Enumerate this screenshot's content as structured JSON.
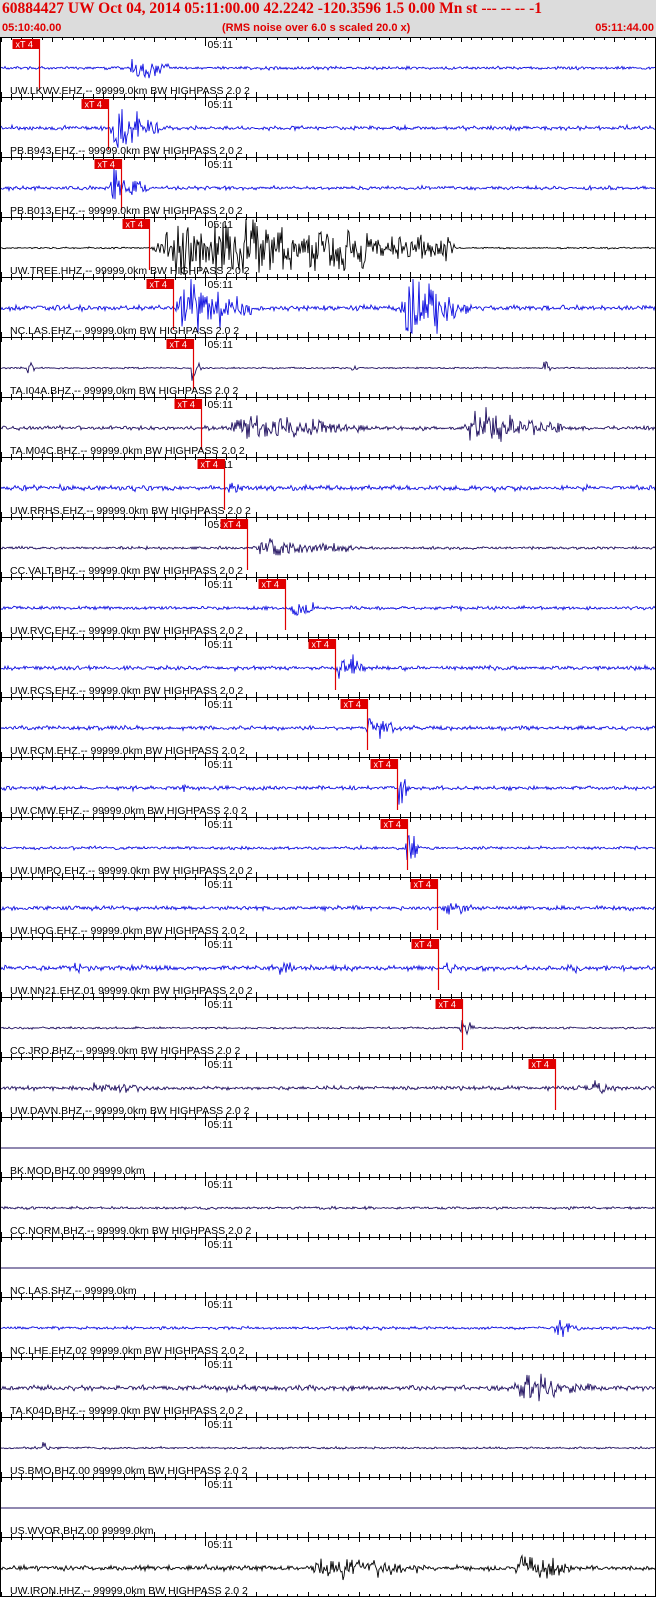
{
  "header": {
    "title": "60884427 UW Oct 04, 2014 05:11:00.00   42.2242 -120.3596  1.5 0.00 Mn st --- -- --  -1",
    "start_time": "05:10:40.00",
    "note": "(RMS noise over 6.0 s scaled 20.0 x)",
    "end_time": "05:11:44.00"
  },
  "chart_data": {
    "type": "line",
    "time_start_s": 0,
    "time_end_s": 64,
    "minor_tick_interval_s": 1,
    "major_tick_interval_s": 5,
    "minute_label": "05:11",
    "minute_label_at_s": 20,
    "pick_label": "xT 4",
    "colors": {
      "trace_blue": "#1010e0",
      "trace_navy": "#201060",
      "trace_black": "#000000",
      "pick": "#e00000",
      "axis": "#000000"
    },
    "traces": [
      {
        "label": "UW.LKWV.EHZ.-- 99999.0km BW  HIGHPASS  2.0  2",
        "pick_s": 3.7,
        "color": "trace_blue",
        "noise": 0.06,
        "events": [
          {
            "t": 12.5,
            "amp": 0.65,
            "dur": 4
          }
        ]
      },
      {
        "label": "PB.B943.EHZ.-- 99999.0km BW  HIGHPASS  2.0  2",
        "pick_s": 10.5,
        "color": "trace_blue",
        "noise": 0.08,
        "events": [
          {
            "t": 10.5,
            "amp": 1.0,
            "dur": 5
          }
        ]
      },
      {
        "label": "PB.B013.EHZ.-- 99999.0km BW  HIGHPASS  2.0  2",
        "pick_s": 11.7,
        "color": "trace_blue",
        "noise": 0.07,
        "events": [
          {
            "t": 10.5,
            "amp": 0.7,
            "dur": 4
          }
        ]
      },
      {
        "label": "UW.TREE.HHZ.-- 99999.0km BW  HIGHPASS  2.0  2",
        "pick_s": 14.5,
        "color": "trace_black",
        "noise": 0.03,
        "events": [
          {
            "t": 14.6,
            "amp": 1.4,
            "dur": 30
          }
        ]
      },
      {
        "label": "NC.LAS.EHZ.-- 99999.0km BW  HIGHPASS  2.0  2",
        "pick_s": 16.8,
        "color": "trace_blue",
        "noise": 0.1,
        "events": [
          {
            "t": 17,
            "amp": 1.1,
            "dur": 8
          },
          {
            "t": 39,
            "amp": 1.2,
            "dur": 7
          }
        ]
      },
      {
        "label": "TA.I04A.BHZ.-- 99999.0km BW  HIGHPASS  2.0  2",
        "pick_s": 18.8,
        "color": "trace_navy",
        "noise": 0.03,
        "events": [
          {
            "t": 2.5,
            "amp": 0.4,
            "dur": 0.8
          },
          {
            "t": 18.6,
            "amp": 0.5,
            "dur": 1
          },
          {
            "t": 34.3,
            "amp": 0.3,
            "dur": 0.6
          },
          {
            "t": 53,
            "amp": 0.4,
            "dur": 0.8
          }
        ]
      },
      {
        "label": "TA.M04C.BHZ.-- 99999.0km BW  HIGHPASS  2.0  2",
        "pick_s": 19.6,
        "color": "trace_navy",
        "noise": 0.08,
        "events": [
          {
            "t": 22,
            "amp": 0.55,
            "dur": 14
          },
          {
            "t": 45,
            "amp": 0.7,
            "dur": 10
          }
        ]
      },
      {
        "label": "UW.RRHS.EHZ.-- 99999.0km BW  HIGHPASS  2.0  2",
        "pick_s": 21.8,
        "color": "trace_blue",
        "noise": 0.1,
        "events": [
          {
            "t": 22,
            "amp": 0.3,
            "dur": 3
          }
        ]
      },
      {
        "label": "CC.VALT.BHZ.-- 99999.0km BW  HIGHPASS  2.0  2",
        "pick_s": 24.1,
        "color": "trace_navy",
        "noise": 0.05,
        "events": [
          {
            "t": 24.5,
            "amp": 0.45,
            "dur": 10
          }
        ]
      },
      {
        "label": "UW.RVC.EHZ.-- 99999.0km BW  HIGHPASS  2.0  2",
        "pick_s": 27.8,
        "color": "trace_blue",
        "noise": 0.07,
        "events": [
          {
            "t": 28.3,
            "amp": 0.55,
            "dur": 2.5
          }
        ]
      },
      {
        "label": "UW.RCS.EHZ.-- 99999.0km BW  HIGHPASS  2.0  2",
        "pick_s": 32.7,
        "color": "trace_blue",
        "noise": 0.08,
        "events": [
          {
            "t": 32.7,
            "amp": 0.7,
            "dur": 3
          }
        ]
      },
      {
        "label": "UW.RCM.EHZ.-- 99999.0km BW  HIGHPASS  2.0  2",
        "pick_s": 35.8,
        "color": "trace_blue",
        "noise": 0.08,
        "events": [
          {
            "t": 35.5,
            "amp": 0.55,
            "dur": 3
          }
        ]
      },
      {
        "label": "UW.CMW.EHZ.-- 99999.0km BW  HIGHPASS  2.0  2",
        "pick_s": 38.8,
        "color": "trace_blue",
        "noise": 0.08,
        "events": [
          {
            "t": 17.8,
            "amp": 0.9,
            "dur": 0.3
          },
          {
            "t": 38.8,
            "amp": 0.9,
            "dur": 1.2
          }
        ]
      },
      {
        "label": "UW.UMPQ.EHZ.-- 99999.0km BW  HIGHPASS  2.0  2",
        "pick_s": 39.7,
        "color": "trace_blue",
        "noise": 0.06,
        "events": [
          {
            "t": 39.5,
            "amp": 0.9,
            "dur": 1.5
          }
        ]
      },
      {
        "label": "UW.HOG.EHZ.-- 99999.0km BW  HIGHPASS  2.0  2",
        "pick_s": 42.7,
        "color": "trace_blue",
        "noise": 0.08,
        "events": [
          {
            "t": 43,
            "amp": 0.45,
            "dur": 3
          }
        ]
      },
      {
        "label": "UW.NN21.EHZ.01 99999.0km BW  HIGHPASS  2.0  2",
        "pick_s": 42.8,
        "color": "trace_blue",
        "noise": 0.1,
        "events": [
          {
            "t": 7,
            "amp": 0.3,
            "dur": 3
          },
          {
            "t": 27,
            "amp": 0.3,
            "dur": 2
          },
          {
            "t": 43,
            "amp": 0.3,
            "dur": 2
          },
          {
            "t": 55,
            "amp": 0.3,
            "dur": 2
          }
        ]
      },
      {
        "label": "CC.JRO.BHZ.-- 99999.0km BW  HIGHPASS  2.0  2",
        "pick_s": 45.1,
        "color": "trace_navy",
        "noise": 0.04,
        "events": [
          {
            "t": 44.8,
            "amp": 0.4,
            "dur": 1.5
          }
        ]
      },
      {
        "label": "UW.DAVN.BHZ.-- 99999.0km BW  HIGHPASS  2.0  2",
        "pick_s": 54.2,
        "color": "trace_navy",
        "noise": 0.08,
        "events": [
          {
            "t": 8,
            "amp": 0.25,
            "dur": 8
          },
          {
            "t": 57,
            "amp": 0.3,
            "dur": 4
          }
        ]
      },
      {
        "label": "BK.MOD.BHZ.00 99999.0km",
        "pick_s": null,
        "color": "trace_navy",
        "noise": 0.0,
        "events": []
      },
      {
        "label": "CC.NORM.BHZ.-- 99999.0km BW  HIGHPASS  2.0  2",
        "pick_s": null,
        "color": "trace_navy",
        "noise": 0.05,
        "events": []
      },
      {
        "label": "NC.LAS.SHZ.-- 99999.0km",
        "pick_s": null,
        "color": "trace_navy",
        "noise": 0.0,
        "events": []
      },
      {
        "label": "NC.LHE.EHZ.02 99999.0km BW  HIGHPASS  2.0  2",
        "pick_s": null,
        "color": "trace_blue",
        "noise": 0.06,
        "events": [
          {
            "t": 54,
            "amp": 0.4,
            "dur": 3
          }
        ]
      },
      {
        "label": "TA.K04D.BHZ.-- 99999.0km BW  HIGHPASS  2.0  2",
        "pick_s": null,
        "color": "trace_navy",
        "noise": 0.1,
        "events": [
          {
            "t": 50,
            "amp": 0.6,
            "dur": 8
          }
        ]
      },
      {
        "label": "US.BMO.BHZ.00 99999.0km BW  HIGHPASS  2.0  2",
        "pick_s": null,
        "color": "trace_navy",
        "noise": 0.04,
        "events": [
          {
            "t": 4,
            "amp": 0.25,
            "dur": 0.8
          }
        ]
      },
      {
        "label": "US.WVOR.BHZ.00 99999.0km",
        "pick_s": null,
        "color": "trace_navy",
        "noise": 0.0,
        "events": []
      },
      {
        "label": "UW.IRON.HHZ.-- 99999.0km BW  HIGHPASS  2.0  2",
        "pick_s": null,
        "color": "trace_black",
        "noise": 0.1,
        "events": [
          {
            "t": 30,
            "amp": 0.5,
            "dur": 12
          },
          {
            "t": 50,
            "amp": 0.7,
            "dur": 6
          }
        ]
      }
    ]
  }
}
